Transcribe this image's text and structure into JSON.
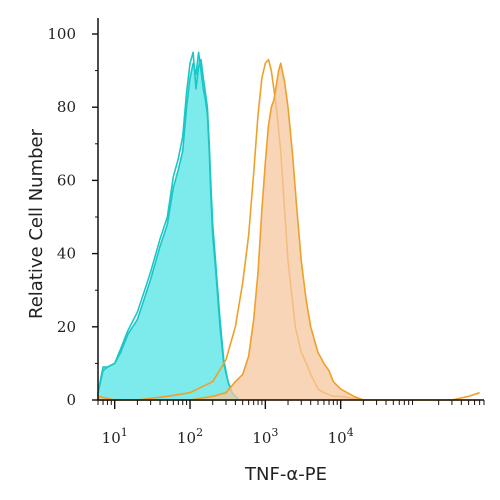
{
  "chart_data": {
    "type": "area",
    "title": "",
    "xlabel": "TNF-α-PE",
    "ylabel": "Relative Cell Number",
    "x_scale": "log",
    "xlim": [
      6,
      800000
    ],
    "ylim": [
      0,
      105
    ],
    "x_ticks": [
      {
        "value": 10,
        "base": "10",
        "exp": "1"
      },
      {
        "value": 100,
        "base": "10",
        "exp": "2"
      },
      {
        "value": 1000,
        "base": "10",
        "exp": "3"
      },
      {
        "value": 10000,
        "base": "10",
        "exp": "4"
      }
    ],
    "y_ticks": [
      0,
      20,
      40,
      60,
      80,
      100
    ],
    "grid": false,
    "legend": "none",
    "colors": {
      "control_fill": "#66e8e8",
      "control_line": "#1cc6c6",
      "stained_fill": "#f5c79e",
      "stained_line": "#efa02a",
      "axis": "#111111"
    },
    "series": [
      {
        "role": "control",
        "x": [
          6,
          7,
          8,
          10,
          12,
          15,
          20,
          25,
          30,
          40,
          50,
          60,
          70,
          80,
          90,
          100,
          110,
          120,
          130,
          140,
          150,
          160,
          170,
          180,
          190,
          200,
          220,
          250,
          280,
          320,
          360,
          400,
          450
        ],
        "y": [
          2,
          9,
          9,
          10,
          13,
          18,
          22,
          28,
          33,
          42,
          48,
          58,
          63,
          68,
          80,
          88,
          92,
          89,
          95,
          90,
          85,
          82,
          78,
          68,
          55,
          45,
          35,
          20,
          10,
          5,
          2,
          1,
          0
        ]
      },
      {
        "role": "control-overlay",
        "x": [
          6,
          7,
          8,
          10,
          12,
          15,
          20,
          25,
          30,
          40,
          50,
          60,
          70,
          80,
          90,
          100,
          110,
          120,
          130,
          140,
          150,
          160,
          170,
          180,
          190,
          200,
          220,
          250,
          280,
          320,
          360,
          400,
          450
        ],
        "y": [
          2,
          8,
          9,
          10,
          14,
          19,
          24,
          30,
          35,
          44,
          50,
          61,
          66,
          72,
          84,
          92,
          95,
          85,
          91,
          93,
          88,
          84,
          80,
          70,
          58,
          48,
          37,
          22,
          11,
          5,
          2,
          1,
          0
        ]
      },
      {
        "role": "stained-outline",
        "x": [
          6,
          8,
          10,
          20,
          50,
          100,
          200,
          300,
          400,
          500,
          600,
          700,
          800,
          900,
          1000,
          1100,
          1200,
          1400,
          1600,
          1800,
          2000,
          2500,
          3000,
          3500,
          4000,
          5000,
          6000,
          8000,
          10000,
          20000,
          50000,
          100000,
          300000,
          500000,
          700000
        ],
        "y": [
          0,
          0,
          0,
          0,
          1,
          2,
          5,
          11,
          20,
          32,
          45,
          62,
          78,
          88,
          92,
          93,
          90,
          80,
          68,
          52,
          38,
          20,
          13,
          10,
          7,
          3,
          2,
          1,
          1,
          0,
          0,
          0,
          0,
          1,
          2
        ]
      },
      {
        "role": "stained",
        "x": [
          6,
          10,
          50,
          100,
          200,
          300,
          400,
          500,
          600,
          700,
          800,
          900,
          1000,
          1100,
          1200,
          1300,
          1400,
          1500,
          1600,
          1800,
          2000,
          2300,
          2600,
          3000,
          3500,
          4000,
          5000,
          6000,
          7000,
          8000,
          10000,
          15000,
          20000,
          40000,
          100000,
          200000,
          400000,
          700000
        ],
        "y": [
          1,
          0,
          0,
          0,
          1,
          2,
          5,
          7,
          12,
          22,
          35,
          52,
          65,
          75,
          80,
          82,
          86,
          90,
          92,
          87,
          80,
          67,
          53,
          38,
          27,
          20,
          13,
          10,
          8,
          5,
          3,
          1,
          0,
          0,
          0,
          0,
          0,
          0
        ]
      }
    ]
  }
}
